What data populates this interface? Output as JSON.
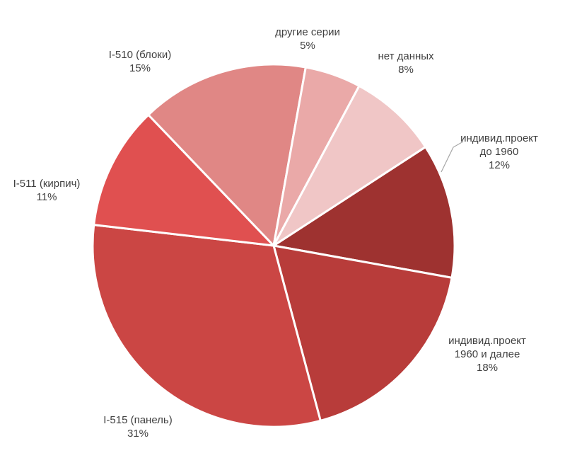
{
  "chart_data": {
    "type": "pie",
    "title": "",
    "start_angle_deg": 57,
    "slices": [
      {
        "label_lines": [
          "индивид.проект",
          "до 1960"
        ],
        "value_label": "12%",
        "value": 12,
        "color": "#9e3230"
      },
      {
        "label_lines": [
          "индивид.проект",
          "1960 и далее"
        ],
        "value_label": "18%",
        "value": 18,
        "color": "#b83c3a"
      },
      {
        "label_lines": [
          "I-515 (панель)"
        ],
        "value_label": "31%",
        "value": 31,
        "color": "#cb4644"
      },
      {
        "label_lines": [
          "I-511 (кирпич)"
        ],
        "value_label": "11%",
        "value": 11,
        "color": "#e05050"
      },
      {
        "label_lines": [
          "I-510 (блоки)"
        ],
        "value_label": "15%",
        "value": 15,
        "color": "#e08785"
      },
      {
        "label_lines": [
          "другие серии"
        ],
        "value_label": "5%",
        "value": 5,
        "color": "#eaa9a8"
      },
      {
        "label_lines": [
          "нет данных"
        ],
        "value_label": "8%",
        "value": 8,
        "color": "#f0c6c6"
      }
    ]
  }
}
